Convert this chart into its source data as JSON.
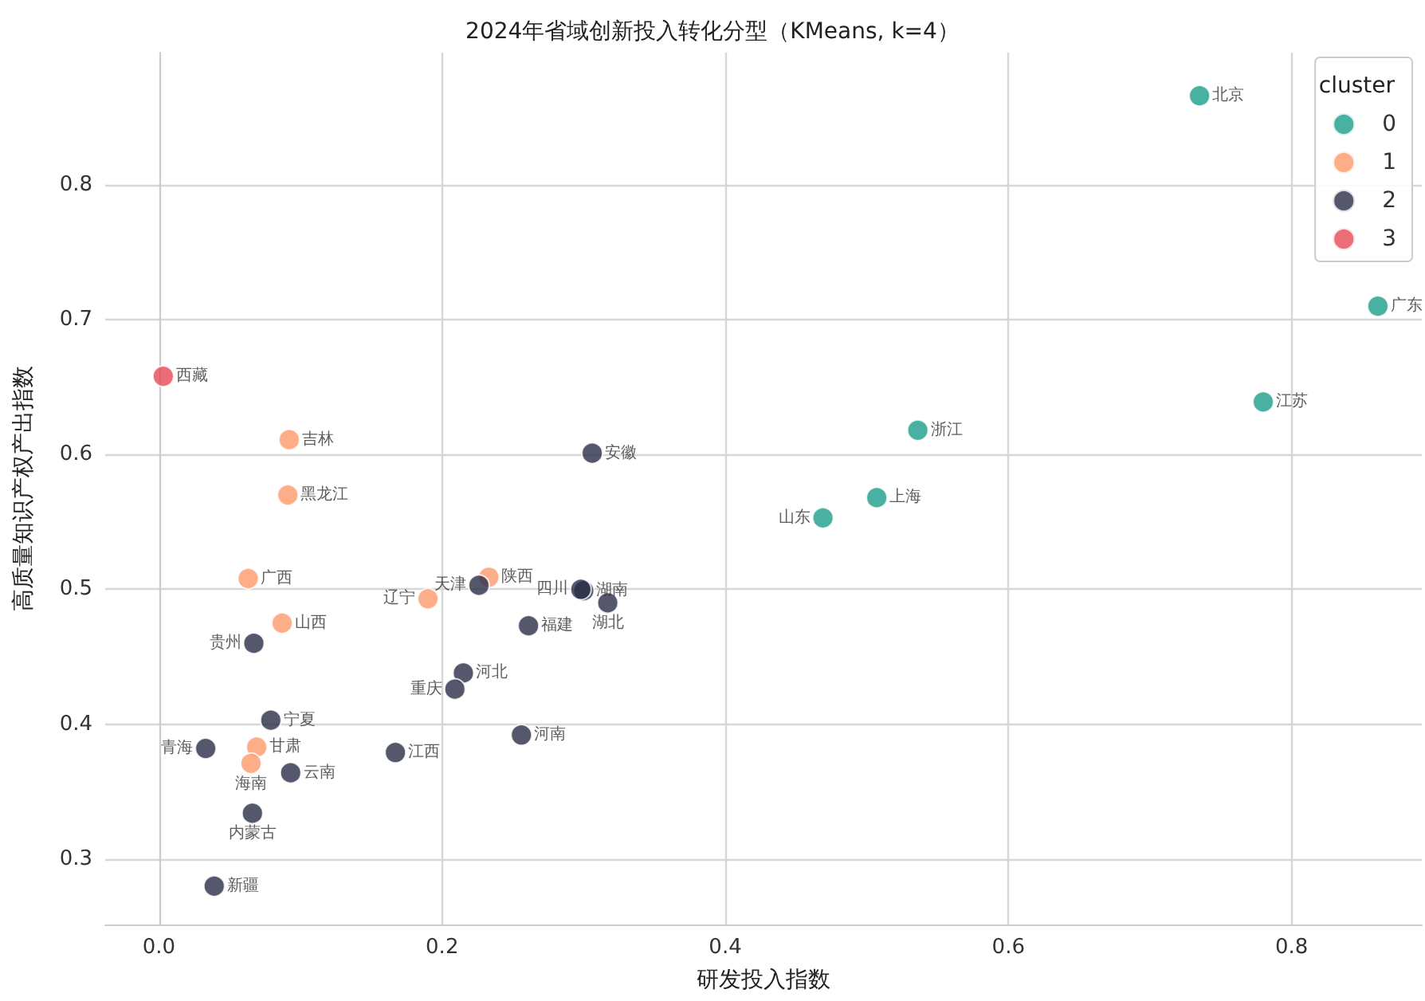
{
  "chart_data": {
    "type": "scatter",
    "title": "2024年省域创新投入转化分型（KMeans, k=4）",
    "xlabel": "研发投入指数",
    "ylabel": "高质量知识产权产出指数",
    "legend_title": "cluster",
    "legend": "top right",
    "grid": true,
    "marker": "circle",
    "xlim": [
      -0.038,
      0.892
    ],
    "ylim": [
      0.2515,
      0.898
    ],
    "xticks": [
      {
        "value": 0,
        "label": "0.0"
      },
      {
        "value": 0.2,
        "label": "0.2"
      },
      {
        "value": 0.4,
        "label": "0.4"
      },
      {
        "value": 0.6,
        "label": "0.6"
      },
      {
        "value": 0.8,
        "label": "0.8"
      }
    ],
    "yticks": [
      0.3,
      0.4,
      0.5,
      0.6,
      0.7,
      0.8
    ],
    "series": [
      {
        "name": "0",
        "color": "#1b9e8a",
        "x": [
          0.735,
          0.861,
          0.78,
          0.536,
          0.507,
          0.469
        ],
        "values": [
          0.866,
          0.71,
          0.639,
          0.618,
          0.568,
          0.553
        ],
        "value_labels": [
          "北京",
          "广东",
          "江苏",
          "浙江",
          "上海",
          "山东"
        ]
      },
      {
        "name": "1",
        "color": "#fc9a6b",
        "x": [
          0.092,
          0.091,
          0.063,
          0.087,
          0.069,
          0.065,
          0.19,
          0.233
        ],
        "values": [
          0.611,
          0.57,
          0.508,
          0.475,
          0.383,
          0.371,
          0.493,
          0.509
        ],
        "value_labels": [
          "吉林",
          "黑龙江",
          "广西",
          "山西",
          "甘肃",
          "海南",
          "辽宁",
          "陕西"
        ]
      },
      {
        "name": "2",
        "color": "#2b2d47",
        "x": [
          0.067,
          0.079,
          0.033,
          0.093,
          0.066,
          0.039,
          0.167,
          0.226,
          0.306,
          0.3,
          0.298,
          0.317,
          0.261,
          0.215,
          0.209,
          0.256
        ],
        "values": [
          0.46,
          0.403,
          0.382,
          0.364,
          0.334,
          0.28,
          0.379,
          0.503,
          0.601,
          0.499,
          0.5,
          0.49,
          0.473,
          0.438,
          0.426,
          0.392
        ],
        "value_labels": [
          "贵州",
          "宁夏",
          "青海",
          "云南",
          "内蒙古",
          "新疆",
          "江西",
          "天津",
          "安徽",
          "湖南",
          "四川",
          "湖北",
          "福建",
          "河北",
          "重庆",
          "河南"
        ]
      },
      {
        "name": "3",
        "color": "#e84855",
        "x": [
          0.003
        ],
        "values": [
          0.658
        ],
        "value_labels": [
          "西藏"
        ]
      }
    ]
  }
}
